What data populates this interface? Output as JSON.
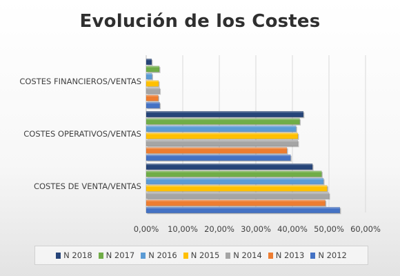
{
  "chart_data": {
    "type": "bar",
    "orientation": "horizontal",
    "title": "Evolución de los Costes",
    "categories": [
      "COSTES DE VENTA/VENTAS",
      "COSTES OPERATIVOS/VENTAS",
      "COSTES FINANCIEROS/VENTAS"
    ],
    "series": [
      {
        "name": "N 2012",
        "color": "#4472C4",
        "values": [
          0.53,
          0.395,
          0.037
        ]
      },
      {
        "name": "N 2013",
        "color": "#ED7D31",
        "values": [
          0.49,
          0.385,
          0.033
        ]
      },
      {
        "name": "N 2014",
        "color": "#A5A5A5",
        "values": [
          0.5,
          0.415,
          0.037
        ]
      },
      {
        "name": "N 2015",
        "color": "#FFC000",
        "values": [
          0.495,
          0.415,
          0.034
        ]
      },
      {
        "name": "N 2016",
        "color": "#5B9BD5",
        "values": [
          0.485,
          0.41,
          0.016
        ]
      },
      {
        "name": "N 2017",
        "color": "#70AD47",
        "values": [
          0.48,
          0.42,
          0.036
        ]
      },
      {
        "name": "N 2018",
        "color": "#264478",
        "values": [
          0.455,
          0.43,
          0.015
        ]
      }
    ],
    "xlim": [
      0,
      0.6
    ],
    "xticks": [
      "0,00%",
      "10,00%",
      "20,00%",
      "30,00%",
      "40,00%",
      "50,00%",
      "60,00%"
    ],
    "legend_order": [
      "N 2018",
      "N 2017",
      "N 2016",
      "N 2015",
      "N 2014",
      "N 2013",
      "N 2012"
    ],
    "legend_position": "bottom",
    "grid": true
  }
}
